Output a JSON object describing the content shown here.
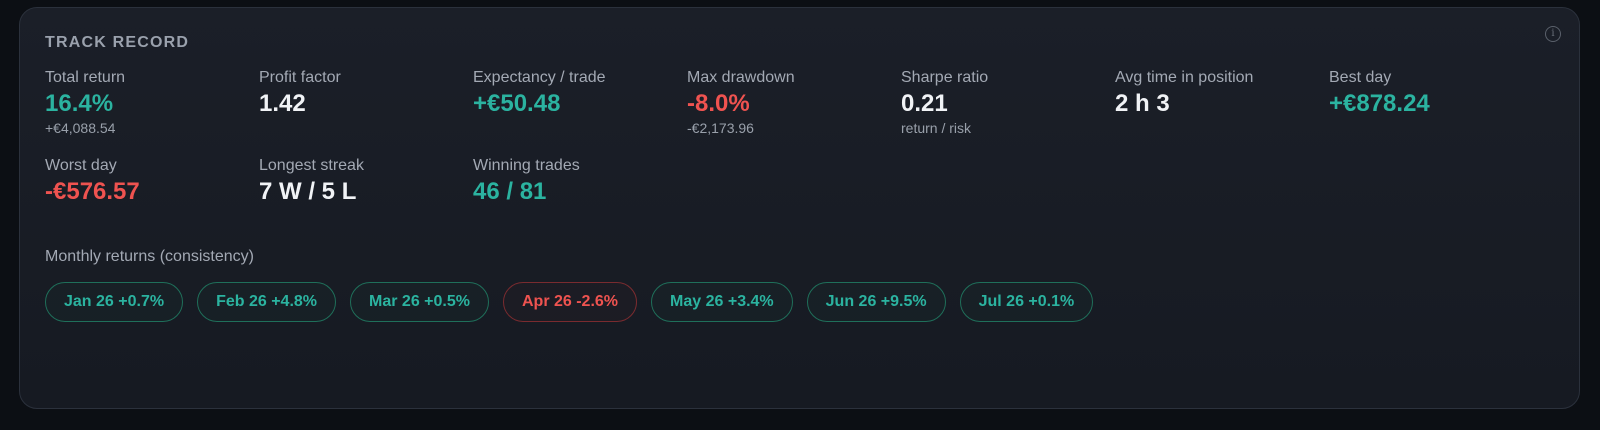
{
  "card": {
    "title": "TRACK RECORD",
    "info_icon": "info-icon"
  },
  "stats": [
    {
      "label": "Total return",
      "value": "16.4%",
      "sub": "+€4,088.54",
      "tone": "green"
    },
    {
      "label": "Profit factor",
      "value": "1.42",
      "sub": "",
      "tone": "white"
    },
    {
      "label": "Expectancy / trade",
      "value": "+€50.48",
      "sub": "",
      "tone": "green"
    },
    {
      "label": "Max drawdown",
      "value": "-8.0%",
      "sub": "-€2,173.96",
      "tone": "red"
    },
    {
      "label": "Sharpe ratio",
      "value": "0.21",
      "sub": "return / risk",
      "tone": "white"
    },
    {
      "label": "Avg time in position",
      "value": "2 h 3",
      "sub": "",
      "tone": "white"
    },
    {
      "label": "Best day",
      "value": "+€878.24",
      "sub": "",
      "tone": "green"
    },
    {
      "label": "Worst day",
      "value": "-€576.57",
      "sub": "",
      "tone": "red"
    },
    {
      "label": "Longest streak",
      "value": "7 W / 5 L",
      "sub": "",
      "tone": "white"
    },
    {
      "label": "Winning trades",
      "value": "46 / 81",
      "sub": "",
      "tone": "green"
    }
  ],
  "monthly": {
    "label": "Monthly returns (consistency)",
    "months": [
      {
        "text": "Jan 26 +0.7%",
        "tone": "green"
      },
      {
        "text": "Feb 26 +4.8%",
        "tone": "green"
      },
      {
        "text": "Mar 26 +0.5%",
        "tone": "green"
      },
      {
        "text": "Apr 26 -2.6%",
        "tone": "red"
      },
      {
        "text": "May 26 +3.4%",
        "tone": "green"
      },
      {
        "text": "Jun 26 +9.5%",
        "tone": "green"
      },
      {
        "text": "Jul 26 +0.1%",
        "tone": "green"
      }
    ]
  },
  "colors": {
    "positive": "#2bb3a0",
    "negative": "#ef5350",
    "neutral": "#f1f3f6",
    "card_bg": "#1b1f28",
    "page_bg": "#0c0f14"
  }
}
